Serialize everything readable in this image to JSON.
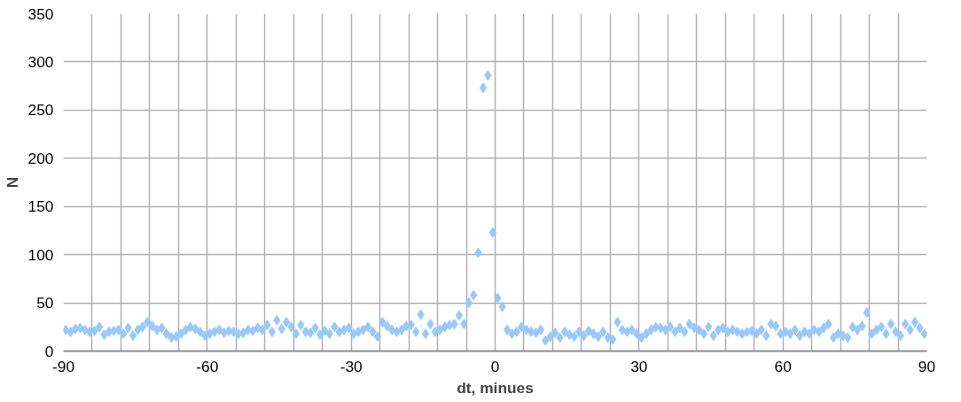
{
  "chart_data": {
    "type": "scatter",
    "xlabel": "dt, minues",
    "ylabel": "N",
    "x": [
      -89.5,
      -88.5,
      -87.5,
      -86.5,
      -85.5,
      -84.5,
      -83.5,
      -82.5,
      -81.5,
      -80.5,
      -79.5,
      -78.5,
      -77.5,
      -76.5,
      -75.5,
      -74.5,
      -73.5,
      -72.5,
      -71.5,
      -70.5,
      -69.5,
      -68.5,
      -67.5,
      -66.5,
      -65.5,
      -64.5,
      -63.5,
      -62.5,
      -61.5,
      -60.5,
      -59.5,
      -58.5,
      -57.5,
      -56.5,
      -55.5,
      -54.5,
      -53.5,
      -52.5,
      -51.5,
      -50.5,
      -49.5,
      -48.5,
      -47.5,
      -46.5,
      -45.5,
      -44.5,
      -43.5,
      -42.5,
      -41.5,
      -40.5,
      -39.5,
      -38.5,
      -37.5,
      -36.5,
      -35.5,
      -34.5,
      -33.5,
      -32.5,
      -31.5,
      -30.5,
      -29.5,
      -28.5,
      -27.5,
      -26.5,
      -25.5,
      -24.5,
      -23.5,
      -22.5,
      -21.5,
      -20.5,
      -19.5,
      -18.5,
      -17.5,
      -16.5,
      -15.5,
      -14.5,
      -13.5,
      -12.5,
      -11.5,
      -10.5,
      -9.5,
      -8.5,
      -7.5,
      -6.5,
      -5.5,
      -4.5,
      -3.5,
      -2.5,
      -1.5,
      -0.5,
      0.5,
      1.5,
      2.5,
      3.5,
      4.5,
      5.5,
      6.5,
      7.5,
      8.5,
      9.5,
      10.5,
      11.5,
      12.5,
      13.5,
      14.5,
      15.5,
      16.5,
      17.5,
      18.5,
      19.5,
      20.5,
      21.5,
      22.5,
      23.5,
      24.5,
      25.5,
      26.5,
      27.5,
      28.5,
      29.5,
      30.5,
      31.5,
      32.5,
      33.5,
      34.5,
      35.5,
      36.5,
      37.5,
      38.5,
      39.5,
      40.5,
      41.5,
      42.5,
      43.5,
      44.5,
      45.5,
      46.5,
      47.5,
      48.5,
      49.5,
      50.5,
      51.5,
      52.5,
      53.5,
      54.5,
      55.5,
      56.5,
      57.5,
      58.5,
      59.5,
      60.5,
      61.5,
      62.5,
      63.5,
      64.5,
      65.5,
      66.5,
      67.5,
      68.5,
      69.5,
      70.5,
      71.5,
      72.5,
      73.5,
      74.5,
      75.5,
      76.5,
      77.5,
      78.5,
      79.5,
      80.5,
      81.5,
      82.5,
      83.5,
      84.5,
      85.5,
      86.5,
      87.5,
      88.5,
      89.5
    ],
    "series": [
      {
        "color": "#99c9fa",
        "values": [
          22,
          20,
          23,
          24,
          22,
          20,
          21,
          25,
          17,
          20,
          21,
          22,
          18,
          24,
          16,
          22,
          25,
          30,
          26,
          22,
          24,
          18,
          14,
          15,
          18,
          22,
          25,
          23,
          20,
          16,
          18,
          20,
          22,
          19,
          21,
          20,
          18,
          19,
          22,
          21,
          24,
          22,
          27,
          20,
          32,
          23,
          30,
          25,
          18,
          27,
          20,
          19,
          24,
          17,
          21,
          18,
          25,
          20,
          22,
          24,
          18,
          20,
          22,
          25,
          20,
          15,
          30,
          26,
          22,
          20,
          22,
          26,
          27,
          20,
          38,
          18,
          28,
          20,
          22,
          25,
          27,
          28,
          37,
          28,
          50,
          58,
          102,
          273,
          286,
          123,
          55,
          46,
          22,
          18,
          20,
          25,
          22,
          20,
          19,
          22,
          11,
          15,
          19,
          14,
          20,
          17,
          15,
          20,
          16,
          21,
          18,
          15,
          20,
          14,
          12,
          30,
          22,
          20,
          22,
          18,
          14,
          18,
          22,
          25,
          24,
          22,
          25,
          20,
          24,
          20,
          28,
          24,
          22,
          18,
          25,
          16,
          22,
          24,
          20,
          22,
          20,
          18,
          20,
          21,
          18,
          22,
          16,
          28,
          26,
          18,
          20,
          18,
          22,
          16,
          20,
          18,
          22,
          20,
          24,
          28,
          14,
          18,
          16,
          14,
          25,
          22,
          26,
          40,
          18,
          22,
          25,
          18,
          28,
          20,
          16,
          28,
          22,
          30,
          24,
          18
        ]
      }
    ],
    "marker": "diamond",
    "grid": true,
    "xlim": [
      -90,
      90
    ],
    "xticks": [
      -90,
      {
        "value": -84,
        "label": null
      },
      {
        "value": -78,
        "label": null
      },
      {
        "value": -72,
        "label": null
      },
      {
        "value": -66,
        "label": null
      },
      -60,
      {
        "value": -54,
        "label": null
      },
      {
        "value": -48,
        "label": null
      },
      {
        "value": -42,
        "label": null
      },
      {
        "value": -36,
        "label": null
      },
      -30,
      {
        "value": -24,
        "label": null
      },
      {
        "value": -18,
        "label": null
      },
      {
        "value": -12,
        "label": null
      },
      {
        "value": -6,
        "label": null
      },
      0,
      {
        "value": 6,
        "label": null
      },
      {
        "value": 12,
        "label": null
      },
      {
        "value": 18,
        "label": null
      },
      {
        "value": 24,
        "label": null
      },
      30,
      {
        "value": 36,
        "label": null
      },
      {
        "value": 42,
        "label": null
      },
      {
        "value": 48,
        "label": null
      },
      {
        "value": 54,
        "label": null
      },
      60,
      {
        "value": 66,
        "label": null
      },
      {
        "value": 72,
        "label": null
      },
      {
        "value": 78,
        "label": null
      },
      {
        "value": 84,
        "label": null
      },
      90
    ],
    "ylim": [
      0,
      350
    ],
    "yticks": [
      0,
      50,
      100,
      150,
      200,
      250,
      300,
      350
    ]
  }
}
